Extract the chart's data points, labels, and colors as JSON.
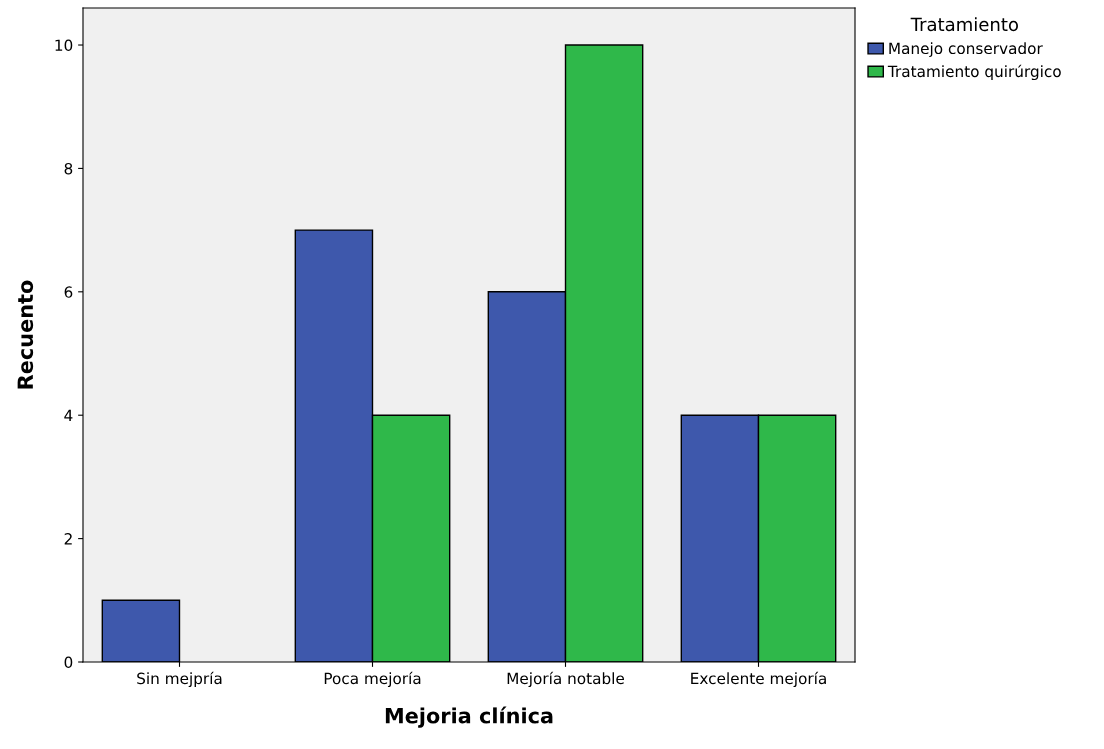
{
  "chart_data": {
    "type": "bar",
    "xlabel": "Mejoria clínica",
    "ylabel": "Recuento",
    "legend_title": "Tratamiento",
    "categories": [
      "Sin mejpría",
      "Poca mejoría",
      "Mejoría notable",
      "Excelente mejoría"
    ],
    "series": [
      {
        "name": "Manejo conservador",
        "color": "#3e58ac",
        "values": [
          1,
          7,
          6,
          4
        ]
      },
      {
        "name": "Tratamiento quirúrgico",
        "color": "#2fb84a",
        "values": [
          null,
          4,
          10,
          4
        ]
      }
    ],
    "ylim": [
      0,
      10.6
    ],
    "yticks": [
      0,
      2,
      4,
      6,
      8,
      10
    ],
    "grid": false,
    "legend": "top right"
  }
}
